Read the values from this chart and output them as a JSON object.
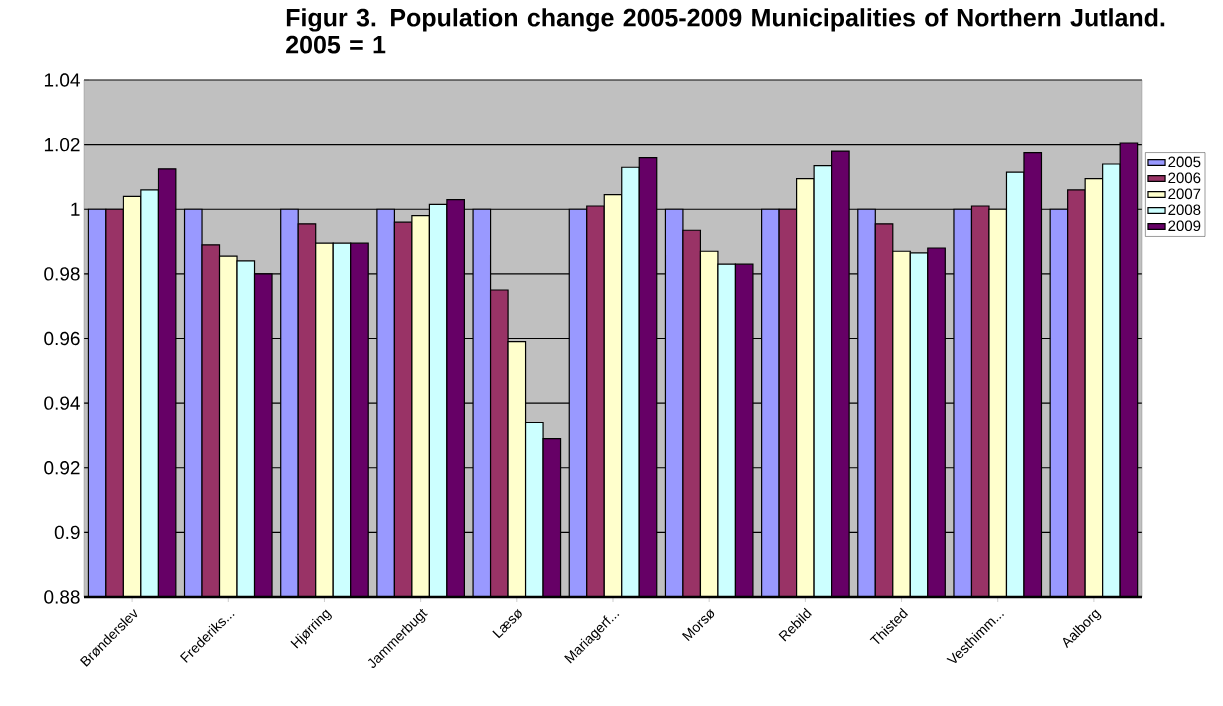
{
  "chart_data": {
    "type": "bar",
    "title": "Figur 3. Population change 2005-2009 Municipalities of Northern Jutland. 2005 =  1",
    "categories": [
      "Brønderslev",
      "Frederiks...",
      "Hjørring",
      "Jammerbugt",
      "Læsø",
      "Mariagerf...",
      "Morsø",
      "Rebild",
      "Thisted",
      "Vesthimm...",
      "Aalborg"
    ],
    "series": [
      {
        "name": "2005",
        "color": "#9999ff",
        "values": [
          1,
          1,
          1,
          1,
          1,
          1,
          1,
          1,
          1,
          1,
          1
        ]
      },
      {
        "name": "2006",
        "color": "#993366",
        "values": [
          1,
          0.989,
          0.9955,
          0.996,
          0.975,
          1.001,
          0.9935,
          1,
          0.9955,
          1.001,
          1.006
        ]
      },
      {
        "name": "2007",
        "color": "#ffffcc",
        "values": [
          1.004,
          0.9855,
          0.9895,
          0.998,
          0.959,
          1.0045,
          0.987,
          1.0095,
          0.987,
          1,
          1.0095
        ]
      },
      {
        "name": "2008",
        "color": "#ccffff",
        "values": [
          1.006,
          0.984,
          0.9895,
          1.0015,
          0.934,
          1.013,
          0.983,
          1.0135,
          0.9865,
          1.0115,
          1.014
        ]
      },
      {
        "name": "2009",
        "color": "#660066",
        "values": [
          1.0125,
          0.98,
          0.9895,
          1.003,
          0.929,
          1.016,
          0.983,
          1.018,
          0.988,
          1.0175,
          1.0205
        ]
      }
    ],
    "ylim": [
      0.88,
      1.04
    ],
    "yticks": [
      0.88,
      0.9,
      0.92,
      0.94,
      0.96,
      0.98,
      1,
      1.02,
      1.04
    ],
    "grid": "y",
    "legend": "right"
  }
}
